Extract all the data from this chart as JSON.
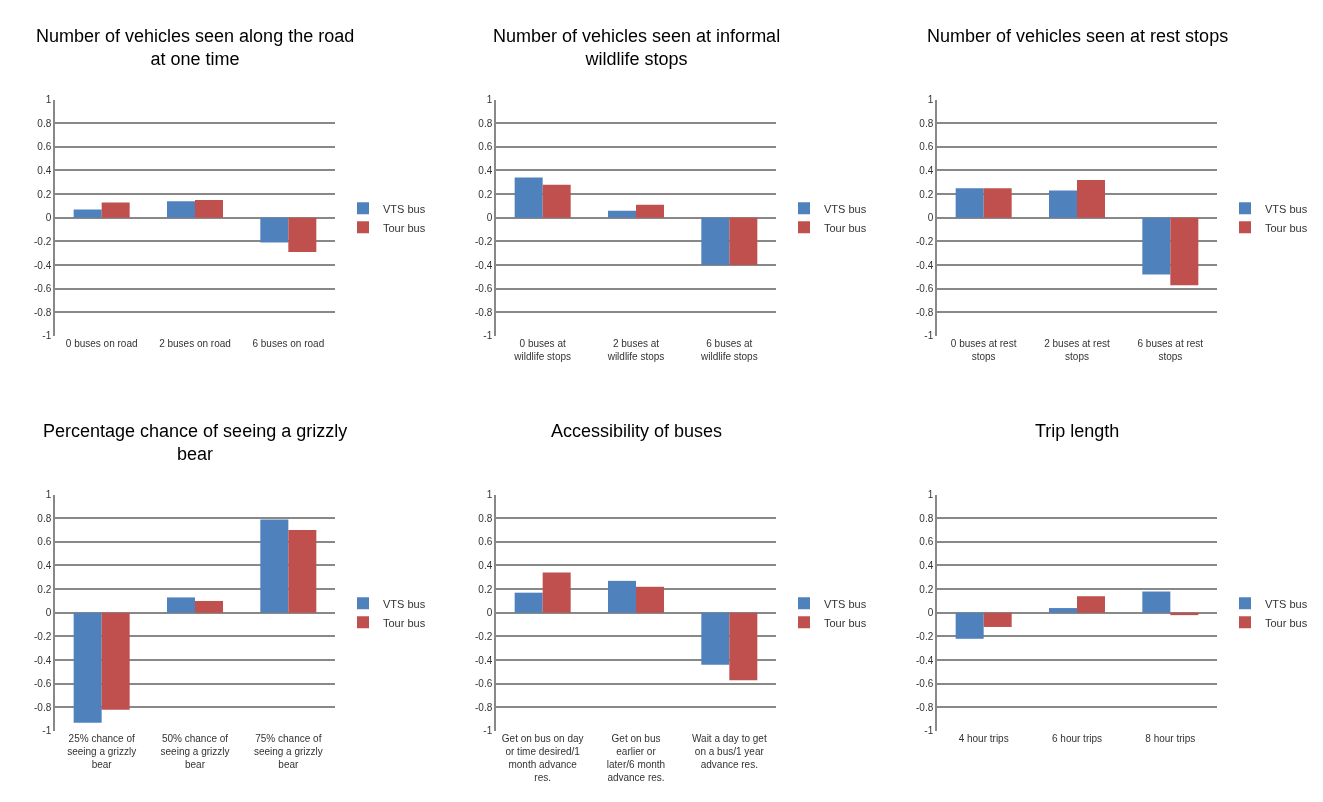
{
  "chart_data": [
    {
      "type": "bar",
      "title": "Number of vehicles seen along the road at one time",
      "categories": [
        "0 buses on road",
        "2 buses on road",
        "6 buses on road"
      ],
      "series": [
        {
          "name": "VTS bus",
          "color": "#4f81bd",
          "values": [
            0.07,
            0.14,
            -0.21
          ]
        },
        {
          "name": "Tour bus",
          "color": "#c0504d",
          "values": [
            0.13,
            0.15,
            -0.29
          ]
        }
      ],
      "ylim": [
        -1,
        1
      ],
      "yticks": [
        -1,
        -0.8,
        -0.6,
        -0.4,
        -0.2,
        0,
        0.2,
        0.4,
        0.6,
        0.8,
        1
      ],
      "grid": "y",
      "legend": "right"
    },
    {
      "type": "bar",
      "title": "Number of vehicles seen at informal wildlife stops",
      "categories": [
        "0 buses at wildlife stops",
        "2 buses at wildlife stops",
        "6 buses at wildlife stops"
      ],
      "series": [
        {
          "name": "VTS bus",
          "color": "#4f81bd",
          "values": [
            0.34,
            0.06,
            -0.4
          ]
        },
        {
          "name": "Tour bus",
          "color": "#c0504d",
          "values": [
            0.28,
            0.11,
            -0.4
          ]
        }
      ],
      "ylim": [
        -1,
        1
      ],
      "yticks": [
        -1,
        -0.8,
        -0.6,
        -0.4,
        -0.2,
        0,
        0.2,
        0.4,
        0.6,
        0.8,
        1
      ],
      "grid": "y",
      "legend": "right"
    },
    {
      "type": "bar",
      "title": "Number of vehicles seen at rest stops",
      "categories": [
        "0 buses at rest stops",
        "2 buses at rest stops",
        "6 buses at rest stops"
      ],
      "series": [
        {
          "name": "VTS bus",
          "color": "#4f81bd",
          "values": [
            0.25,
            0.23,
            -0.48
          ]
        },
        {
          "name": "Tour bus",
          "color": "#c0504d",
          "values": [
            0.25,
            0.32,
            -0.57
          ]
        }
      ],
      "ylim": [
        -1,
        1
      ],
      "yticks": [
        -1,
        -0.8,
        -0.6,
        -0.4,
        -0.2,
        0,
        0.2,
        0.4,
        0.6,
        0.8,
        1
      ],
      "grid": "y",
      "legend": "right"
    },
    {
      "type": "bar",
      "title": "Percentage chance of seeing a grizzly bear",
      "categories": [
        "25% chance of seeing a grizzly bear",
        "50% chance of seeing a grizzly bear",
        "75% chance of seeing a grizzly bear"
      ],
      "series": [
        {
          "name": "VTS bus",
          "color": "#4f81bd",
          "values": [
            -0.93,
            0.13,
            0.79
          ]
        },
        {
          "name": "Tour bus",
          "color": "#c0504d",
          "values": [
            -0.82,
            0.1,
            0.7
          ]
        }
      ],
      "ylim": [
        -1,
        1
      ],
      "yticks": [
        -1,
        -0.8,
        -0.6,
        -0.4,
        -0.2,
        0,
        0.2,
        0.4,
        0.6,
        0.8,
        1
      ],
      "grid": "y",
      "legend": "right"
    },
    {
      "type": "bar",
      "title": "Accessibility of buses",
      "categories": [
        "Get on bus on day or time desired/1 month advance res.",
        "Get on bus earlier or later/6 month advance res.",
        "Wait a day to get on a bus/1 year advance res."
      ],
      "series": [
        {
          "name": "VTS bus",
          "color": "#4f81bd",
          "values": [
            0.17,
            0.27,
            -0.44
          ]
        },
        {
          "name": "Tour bus",
          "color": "#c0504d",
          "values": [
            0.34,
            0.22,
            -0.57
          ]
        }
      ],
      "ylim": [
        -1,
        1
      ],
      "yticks": [
        -1,
        -0.8,
        -0.6,
        -0.4,
        -0.2,
        0,
        0.2,
        0.4,
        0.6,
        0.8,
        1
      ],
      "grid": "y",
      "legend": "right"
    },
    {
      "type": "bar",
      "title": "Trip length",
      "categories": [
        "4 hour trips",
        "6 hour trips",
        "8 hour trips"
      ],
      "series": [
        {
          "name": "VTS bus",
          "color": "#4f81bd",
          "values": [
            -0.22,
            0.04,
            0.18
          ]
        },
        {
          "name": "Tour bus",
          "color": "#c0504d",
          "values": [
            -0.12,
            0.14,
            -0.02
          ]
        }
      ],
      "ylim": [
        -1,
        1
      ],
      "yticks": [
        -1,
        -0.8,
        -0.6,
        -0.4,
        -0.2,
        0,
        0.2,
        0.4,
        0.6,
        0.8,
        1
      ],
      "grid": "y",
      "legend": "right"
    }
  ]
}
